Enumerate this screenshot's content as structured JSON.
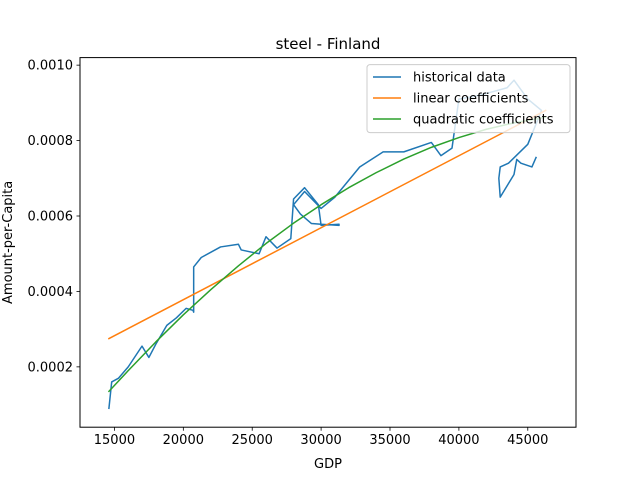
{
  "chart_data": {
    "type": "line",
    "title": "steel - Finland",
    "xlabel": "GDP",
    "ylabel": "Amount-per-Capita",
    "xlim": [
      12500,
      48500
    ],
    "ylim": [
      4e-05,
      0.00102
    ],
    "xticks": [
      15000,
      20000,
      25000,
      30000,
      35000,
      40000,
      45000
    ],
    "xtick_labels": [
      "15000",
      "20000",
      "25000",
      "30000",
      "35000",
      "40000",
      "45000"
    ],
    "yticks": [
      0.0002,
      0.0004,
      0.0006,
      0.0008,
      0.001
    ],
    "ytick_labels": [
      "0.0002",
      "0.0004",
      "0.0006",
      "0.0008",
      "0.0010"
    ],
    "legend_position": "top-right",
    "grid": false,
    "series": [
      {
        "name": "historical data",
        "color": "#1f77b4",
        "x": [
          14600,
          14800,
          15300,
          16000,
          17000,
          17500,
          18000,
          18800,
          19500,
          20200,
          20700,
          20750,
          20750,
          21300,
          22700,
          24000,
          24200,
          25500,
          26000,
          26800,
          27800,
          28000,
          28800,
          29800,
          30000,
          31300,
          31300,
          30000,
          29300,
          28500,
          28000,
          28800,
          30000,
          31000,
          32800,
          34500,
          36000,
          38000,
          38700,
          39500,
          40000,
          41500,
          42500,
          43500,
          44000,
          45000,
          46000,
          45000,
          43600,
          43000,
          42900,
          43000,
          44000,
          44200,
          44500,
          45300,
          45600
        ],
        "y": [
          9e-05,
          0.00016,
          0.00017,
          0.0002,
          0.000255,
          0.000225,
          0.00026,
          0.00031,
          0.00033,
          0.000355,
          0.00035,
          0.000345,
          0.000465,
          0.00049,
          0.000518,
          0.000525,
          0.00051,
          0.0005,
          0.000545,
          0.000515,
          0.00054,
          0.000645,
          0.000675,
          0.00063,
          0.000575,
          0.000578,
          0.000575,
          0.000578,
          0.00058,
          0.000605,
          0.00063,
          0.000665,
          0.00062,
          0.00065,
          0.00073,
          0.00077,
          0.00077,
          0.000795,
          0.00076,
          0.00078,
          0.00091,
          0.00092,
          0.00093,
          0.00094,
          0.00096,
          0.00091,
          0.00088,
          0.00079,
          0.00074,
          0.00073,
          0.0007,
          0.00065,
          0.00071,
          0.00075,
          0.00074,
          0.00073,
          0.000755
        ]
      },
      {
        "name": "linear coefficients",
        "color": "#ff7f0e",
        "x": [
          14600,
          46300
        ],
        "y": [
          0.000275,
          0.00088
        ]
      },
      {
        "name": "quadratic coefficients",
        "color": "#2ca02c",
        "x": [
          14600,
          16000,
          18000,
          20000,
          22000,
          24000,
          26000,
          28000,
          30000,
          32000,
          34000,
          36000,
          38000,
          40000,
          42000,
          44000,
          46300
        ],
        "y": [
          0.000135,
          0.00019,
          0.000266,
          0.000338,
          0.000405,
          0.000468,
          0.000527,
          0.000581,
          0.00063,
          0.000675,
          0.000715,
          0.000751,
          0.000782,
          0.000808,
          0.00083,
          0.000847,
          0.000862
        ]
      }
    ]
  }
}
